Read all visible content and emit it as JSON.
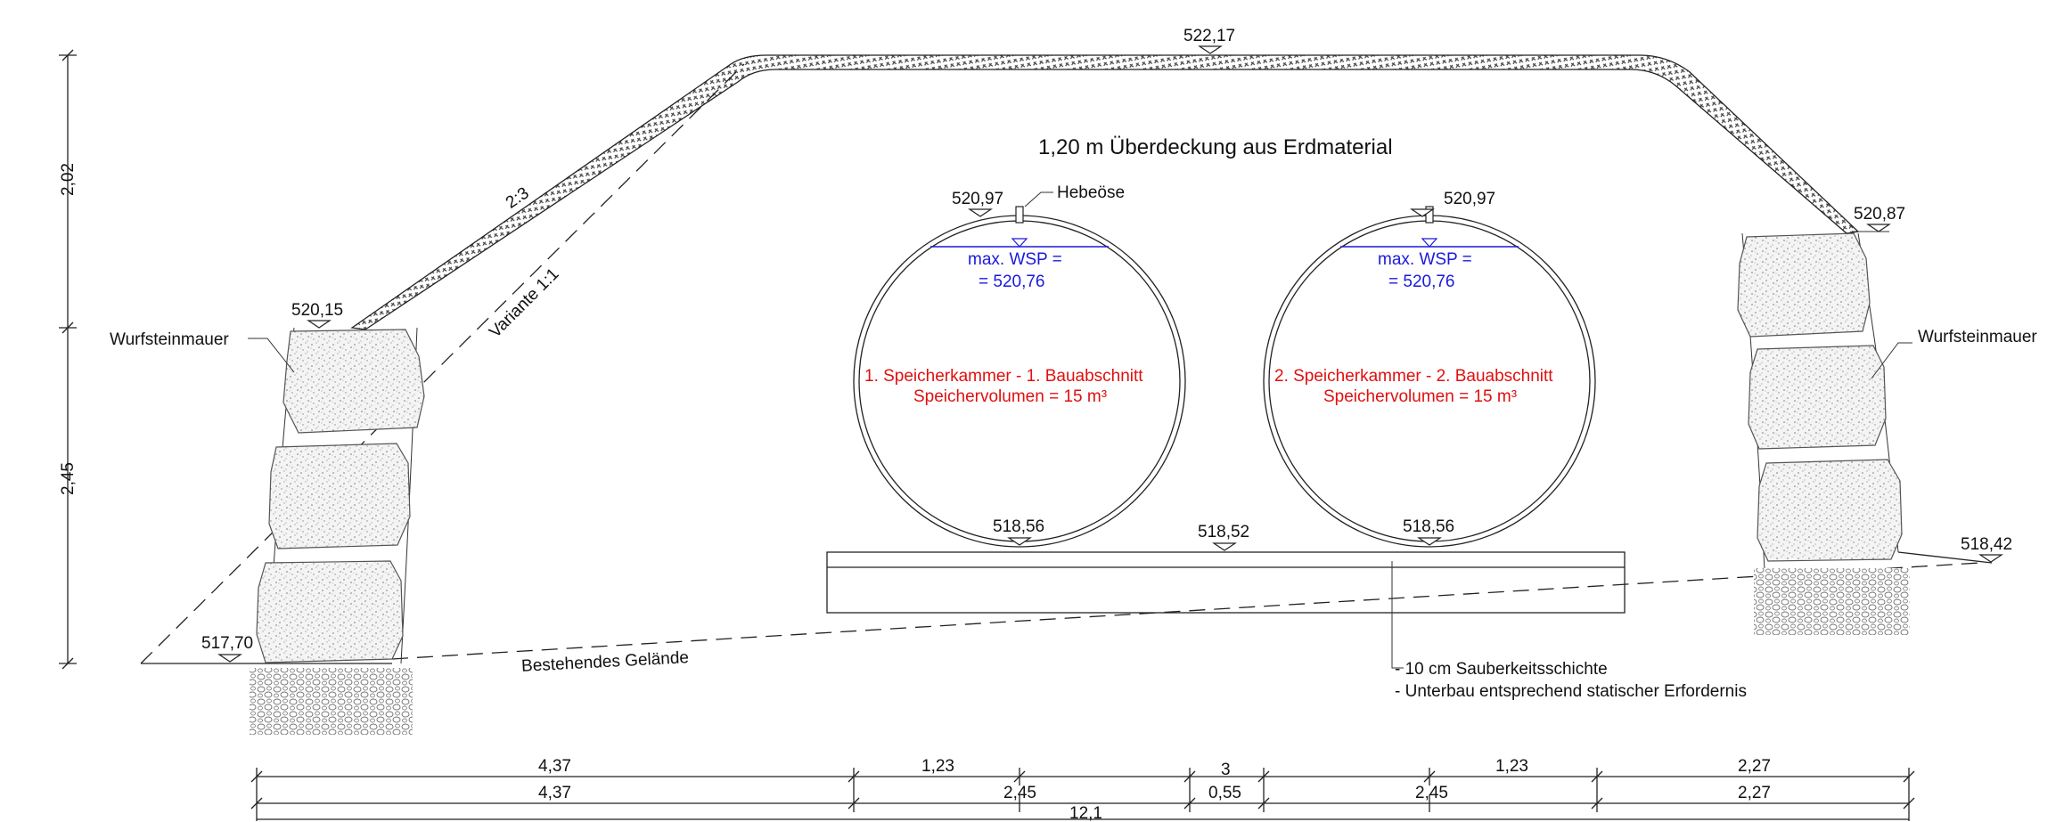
{
  "title": "1,20 m Überdeckung aus Erdmaterial",
  "elevations": {
    "crest": "522,17",
    "left_wall_top": "520,15",
    "right_wall_top": "520,87",
    "left_ground": "517,70",
    "right_ground": "518,42",
    "chamber1_top": "520,97",
    "chamber2_top": "520,97",
    "chamber1_bottom": "518,56",
    "chamber2_bottom": "518,56",
    "slab_top": "518,52"
  },
  "labels": {
    "hook": "Hebeöse",
    "slope": "2:3",
    "variant": "Variante 1:1",
    "wall_left": "Wurfsteinmauer",
    "wall_right": "Wurfsteinmauer",
    "terrain": "Bestehendes Gelände",
    "note1": "- 10 cm Sauberkeitsschichte",
    "note2": "- Unterbau entsprechend statischer Erfordernis"
  },
  "chambers": [
    {
      "wsp1": "max. WSP =",
      "wsp2": "= 520,76",
      "name": "1. Speicherkammer - 1. Bauabschnitt",
      "volume": "Speichervolumen = 15 m³"
    },
    {
      "wsp1": "max. WSP =",
      "wsp2": "= 520,76",
      "name": "2. Speicherkammer - 2. Bauabschnitt",
      "volume": "Speichervolumen = 15 m³"
    }
  ],
  "vertical_dims": {
    "upper": "2,02",
    "lower": "2,45"
  },
  "dim_row1": [
    "4,37",
    "1,23",
    "3",
    "1,23",
    "2,27"
  ],
  "dim_row2": [
    "4,37",
    "2,45",
    "0,55",
    "2,45",
    "2,27"
  ],
  "dim_total": "12,1",
  "colors": {
    "line": "#222222",
    "water": "#1a1adc",
    "chamber_text": "#e01010"
  }
}
